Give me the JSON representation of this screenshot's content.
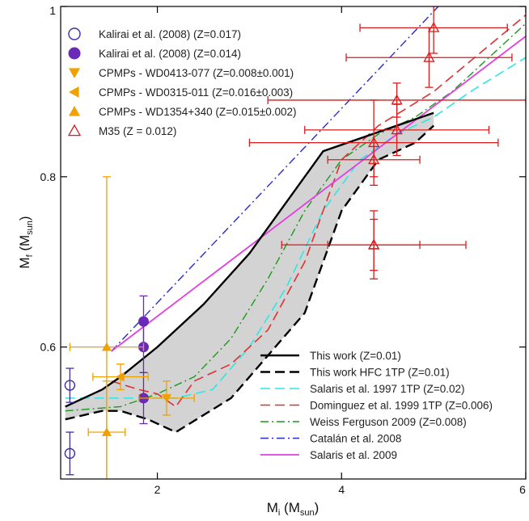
{
  "chart_data": {
    "type": "scatter",
    "title": "",
    "xlabel": {
      "main": "M",
      "sub": "i",
      "unit_open": " (M",
      "unit_sub": "sun",
      "unit_close": ")"
    },
    "ylabel": {
      "main": "M",
      "sub": "f",
      "unit_open": " (M",
      "unit_sub": "sun",
      "unit_close": ")"
    },
    "xlim": [
      0.95,
      6.0
    ],
    "ylim": [
      0.445,
      1.0
    ],
    "x_ticks": [
      {
        "value": 2,
        "label": "2"
      },
      {
        "value": 4,
        "label": "4"
      },
      {
        "value": 6,
        "label": "6"
      }
    ],
    "y_ticks": [
      {
        "value": 0.6,
        "label": "0.6"
      },
      {
        "value": 0.8,
        "label": "0.8"
      },
      {
        "value": 1.0,
        "label": "1"
      }
    ],
    "grid": false,
    "points_legend_placement": "top-left",
    "lines_legend_placement": "bottom-right",
    "point_series": [
      {
        "name": "Kalirai et al. (2008) (Z=0.017)",
        "marker": "circle-open",
        "color": "#3b2fa0",
        "points": [
          {
            "x": 1.05,
            "y": 0.555,
            "yerr": 0.02,
            "xerr": 0
          },
          {
            "x": 1.05,
            "y": 0.475,
            "yerr": 0.025,
            "xerr": 0
          }
        ]
      },
      {
        "name": "Kalirai et al. (2008) (Z=0.014)",
        "marker": "circle-filled",
        "color": "#6a2ab8",
        "points": [
          {
            "x": 1.85,
            "y": 0.63,
            "yerr": 0.03,
            "xerr": 0
          },
          {
            "x": 1.85,
            "y": 0.6,
            "yerr": 0.03,
            "xerr": 0
          },
          {
            "x": 1.85,
            "y": 0.54,
            "yerr": 0.03,
            "xerr": 0
          }
        ]
      },
      {
        "name": "CPMPs - WD0413-077 (Z=0.008±0.001)",
        "marker": "triangle-down",
        "color": "#f0a000",
        "points": [
          {
            "x": 2.1,
            "y": 0.54,
            "yerr": 0.02,
            "xerr": 0.3
          }
        ]
      },
      {
        "name": "CPMPs - WD0315-011 (Z=0.016±0.003)",
        "marker": "triangle-left",
        "color": "#f0a000",
        "points": [
          {
            "x": 1.6,
            "y": 0.565,
            "yerr": 0.015,
            "xerr": 0.3
          }
        ]
      },
      {
        "name": "CPMPs - WD1354+340 (Z=0.015±0.002)",
        "marker": "triangle-up",
        "color": "#f0a000",
        "points": [
          {
            "x": 1.45,
            "y": 0.6,
            "yerr": 0.2,
            "xerr": 0.4
          },
          {
            "x": 1.45,
            "y": 0.5,
            "yerr": 0.06,
            "xerr": 0.2
          }
        ]
      },
      {
        "name": "M35 (Z = 0.012)",
        "marker": "triangle-up-open",
        "color": "#d81b1b",
        "points": [
          {
            "x": 5.0,
            "y": 0.975,
            "yerr": 0.03,
            "xerr": 0.8
          },
          {
            "x": 4.95,
            "y": 0.94,
            "yerr": 0.035,
            "xerr": 0.9
          },
          {
            "x": 4.6,
            "y": 0.89,
            "yerr": 0.02,
            "xerr": 1.4
          },
          {
            "x": 4.6,
            "y": 0.855,
            "yerr": 0.03,
            "xerr": 1.0
          },
          {
            "x": 4.35,
            "y": 0.84,
            "yerr": 0.05,
            "xerr": 1.35
          },
          {
            "x": 4.35,
            "y": 0.82,
            "yerr": 0.02,
            "xerr": 0.5
          },
          {
            "x": 4.35,
            "y": 0.72,
            "yerr": 0.04,
            "xerr": 1.0
          },
          {
            "x": 4.35,
            "y": 0.72,
            "yerr": 0.03,
            "xerr": 0.5
          }
        ]
      }
    ],
    "line_series": [
      {
        "name": "This work (Z=0.01)",
        "color": "#000000",
        "dash": "solid",
        "width": 2.4,
        "x": [
          1.0,
          1.4,
          1.6,
          2.0,
          2.5,
          3.0,
          3.4,
          3.8,
          4.2,
          4.6,
          5.0
        ],
        "y": [
          0.53,
          0.55,
          0.565,
          0.6,
          0.65,
          0.71,
          0.77,
          0.83,
          0.845,
          0.86,
          0.875
        ]
      },
      {
        "name": "This work HFC 1TP (Z=0.01)",
        "color": "#000000",
        "dash": "dash",
        "width": 2.4,
        "x": [
          1.0,
          1.4,
          1.6,
          1.9,
          2.2,
          2.5,
          2.8,
          3.2,
          3.6,
          4.0,
          4.4,
          4.8,
          5.0
        ],
        "y": [
          0.515,
          0.525,
          0.525,
          0.515,
          0.5,
          0.52,
          0.54,
          0.59,
          0.64,
          0.76,
          0.82,
          0.84,
          0.86
        ]
      },
      {
        "name": "Salaris et al. 1997 1TP (Z=0.02)",
        "color": "#2ee6e6",
        "dash": "dash",
        "width": 1.6,
        "x": [
          1.0,
          1.6,
          2.2,
          2.6,
          3.0,
          3.4,
          3.8,
          4.2,
          4.6,
          5.0,
          5.4,
          6.0
        ],
        "y": [
          0.54,
          0.54,
          0.54,
          0.55,
          0.6,
          0.67,
          0.76,
          0.82,
          0.85,
          0.87,
          0.9,
          0.94
        ]
      },
      {
        "name": "Dominguez et al. 1999 1TP (Z=0.006)",
        "color": "#e03030",
        "dash": "dash",
        "width": 1.6,
        "x": [
          1.5,
          1.8,
          2.0,
          2.2,
          2.4,
          2.8,
          3.2,
          3.6,
          4.0,
          4.4,
          5.0,
          6.0
        ],
        "y": [
          0.56,
          0.55,
          0.545,
          0.53,
          0.56,
          0.58,
          0.62,
          0.7,
          0.82,
          0.86,
          0.9,
          0.99
        ]
      },
      {
        "name": "Weiss Ferguson 2009 (Z=0.008)",
        "color": "#1a9a1a",
        "dash": "dashdot",
        "width": 1.4,
        "x": [
          1.0,
          1.6,
          2.0,
          2.4,
          2.8,
          3.2,
          3.6,
          4.0,
          4.4,
          4.8,
          5.2,
          6.0
        ],
        "y": [
          0.525,
          0.53,
          0.545,
          0.565,
          0.61,
          0.68,
          0.76,
          0.82,
          0.85,
          0.87,
          0.9,
          0.98
        ]
      },
      {
        "name": "Catalán et al. 2008",
        "color": "#2a2ad0",
        "dash": "dashdot",
        "width": 1.4,
        "x": [
          1.5,
          5.05
        ],
        "y": [
          0.595,
          1.0
        ]
      },
      {
        "name": "Salaris et al. 2009",
        "color": "#e040e0",
        "dash": "solid",
        "width": 1.8,
        "x": [
          1.5,
          6.0
        ],
        "y": [
          0.595,
          0.965
        ]
      }
    ],
    "band": {
      "color": "#d3d3d3",
      "upper": {
        "x": [
          1.0,
          1.4,
          1.6,
          2.0,
          2.5,
          3.0,
          3.4,
          3.8,
          4.2,
          4.6,
          5.0
        ],
        "y": [
          0.53,
          0.55,
          0.565,
          0.6,
          0.65,
          0.71,
          0.77,
          0.83,
          0.845,
          0.86,
          0.875
        ]
      },
      "lower": {
        "x": [
          1.0,
          1.4,
          1.6,
          1.9,
          2.2,
          2.5,
          2.8,
          3.2,
          3.6,
          4.0,
          4.4,
          4.8,
          5.0
        ],
        "y": [
          0.515,
          0.525,
          0.525,
          0.515,
          0.5,
          0.52,
          0.54,
          0.59,
          0.64,
          0.76,
          0.82,
          0.84,
          0.86
        ]
      }
    }
  }
}
